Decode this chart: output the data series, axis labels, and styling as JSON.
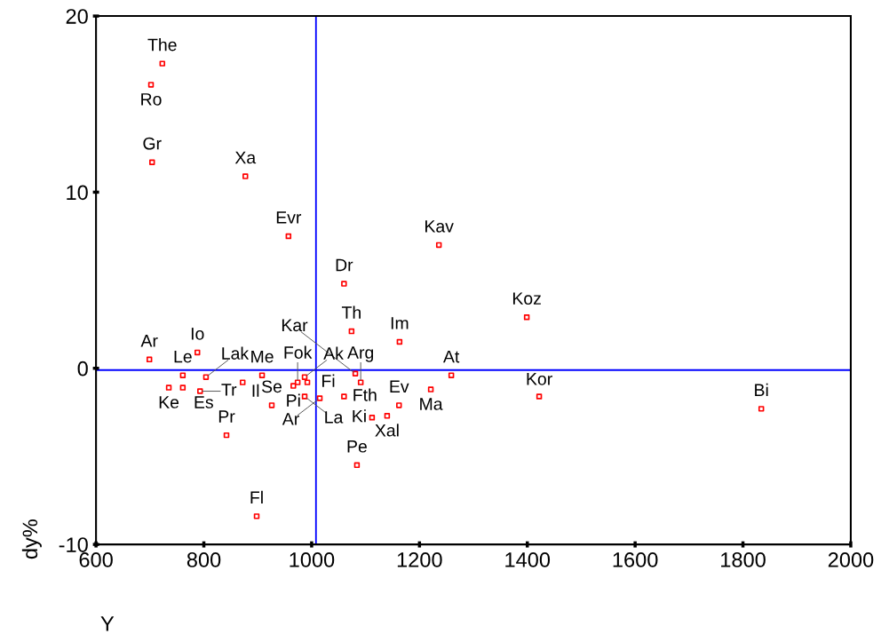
{
  "chart_data": {
    "type": "scatter",
    "xlabel": "Y",
    "ylabel": "dy%",
    "x": [
      723,
      702,
      704,
      877,
      957,
      1236,
      1060,
      1399,
      1074,
      1163,
      699,
      788,
      761,
      804,
      735,
      761,
      793,
      872,
      908,
      926,
      966,
      974,
      987,
      992,
      987,
      1015,
      1060,
      1091,
      1081,
      1162,
      1112,
      1140,
      1221,
      1259,
      1084,
      842,
      898,
      1422,
      1834
    ],
    "series": [
      {
        "color": "#ff0000",
        "values": [
          17.3,
          16.1,
          11.7,
          10.9,
          7.5,
          7.0,
          4.8,
          2.9,
          2.1,
          1.5,
          0.5,
          0.9,
          -0.4,
          -0.5,
          -1.1,
          -1.1,
          -1.3,
          -0.8,
          -0.4,
          -2.1,
          -1.0,
          -0.8,
          -0.5,
          -0.8,
          -1.6,
          -1.7,
          -1.6,
          -0.8,
          -0.3,
          -2.1,
          -2.8,
          -2.7,
          -1.2,
          -0.4,
          -5.5,
          -3.8,
          -8.4,
          -1.6,
          -2.3
        ]
      }
    ],
    "annotations": [
      {
        "text": "The",
        "x": 723,
        "y": 17.3
      },
      {
        "text": "Ro",
        "x": 702,
        "y": 16.1
      },
      {
        "text": "Gr",
        "x": 704,
        "y": 11.7
      },
      {
        "text": "Xa",
        "x": 877,
        "y": 10.9
      },
      {
        "text": "Evr",
        "x": 957,
        "y": 7.5
      },
      {
        "text": "Kav",
        "x": 1236,
        "y": 7.0
      },
      {
        "text": "Dr",
        "x": 1060,
        "y": 4.8
      },
      {
        "text": "Koz",
        "x": 1399,
        "y": 2.9
      },
      {
        "text": "Th",
        "x": 1074,
        "y": 2.1
      },
      {
        "text": "Im",
        "x": 1163,
        "y": 1.5
      },
      {
        "text": "Ar",
        "x": 699,
        "y": 0.5
      },
      {
        "text": "Io",
        "x": 788,
        "y": 0.9
      },
      {
        "text": "Le",
        "x": 761,
        "y": -0.4
      },
      {
        "text": "Lak",
        "x": 804,
        "y": -0.5
      },
      {
        "text": "Ke",
        "x": 735,
        "y": -1.1
      },
      {
        "text": "Es",
        "x": 761,
        "y": -1.1
      },
      {
        "text": "Tr",
        "x": 793,
        "y": -1.3
      },
      {
        "text": "Il",
        "x": 872,
        "y": -0.8
      },
      {
        "text": "Me",
        "x": 908,
        "y": -0.4
      },
      {
        "text": "Se",
        "x": 926,
        "y": -2.1
      },
      {
        "text": "Pi",
        "x": 966,
        "y": -1.0
      },
      {
        "text": "Fok",
        "x": 974,
        "y": -0.8
      },
      {
        "text": "Ak",
        "x": 987,
        "y": -0.5
      },
      {
        "text": "Fi",
        "x": 992,
        "y": -0.8
      },
      {
        "text": "La",
        "x": 987,
        "y": -1.6
      },
      {
        "text": "Ar",
        "x": 1015,
        "y": -1.7
      },
      {
        "text": "Fth",
        "x": 1060,
        "y": -1.6
      },
      {
        "text": "Arg",
        "x": 1091,
        "y": -0.8
      },
      {
        "text": "Kar",
        "x": 1081,
        "y": -0.3
      },
      {
        "text": "Ev",
        "x": 1162,
        "y": -2.1
      },
      {
        "text": "Ki",
        "x": 1112,
        "y": -2.8
      },
      {
        "text": "Xal",
        "x": 1140,
        "y": -2.7
      },
      {
        "text": "Ma",
        "x": 1221,
        "y": -1.2
      },
      {
        "text": "At",
        "x": 1259,
        "y": -0.4
      },
      {
        "text": "Pe",
        "x": 1084,
        "y": -5.5
      },
      {
        "text": "Pr",
        "x": 842,
        "y": -3.8
      },
      {
        "text": "Fl",
        "x": 898,
        "y": -8.4
      },
      {
        "text": "Kor",
        "x": 1422,
        "y": -1.6
      },
      {
        "text": "Bi",
        "x": 1834,
        "y": -2.3
      }
    ],
    "ref_lines": [
      {
        "axis": "x",
        "value": 1008,
        "color": "#0000ff"
      },
      {
        "axis": "y",
        "value": -0.1,
        "color": "#0000ff"
      }
    ],
    "xlim": [
      600,
      2000
    ],
    "ylim": [
      -10,
      20
    ],
    "xticks": [
      600,
      800,
      1000,
      1200,
      1400,
      1600,
      1800,
      2000
    ],
    "yticks": [
      -10,
      0,
      10,
      20
    ],
    "marker": "square",
    "grid": false,
    "legend": false
  }
}
